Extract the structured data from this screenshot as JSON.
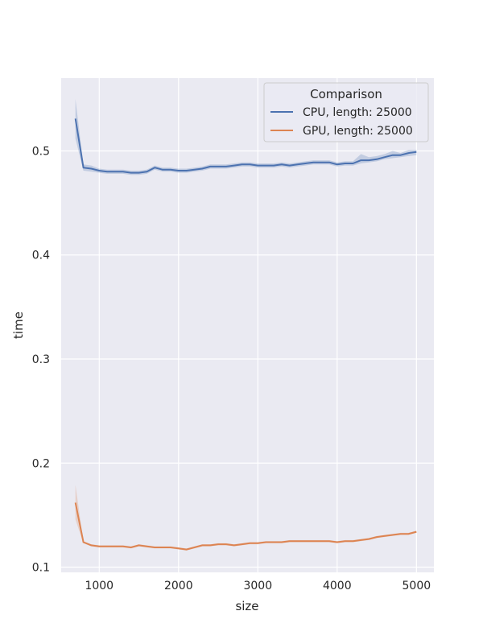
{
  "chart_data": {
    "type": "line",
    "title": "",
    "xlabel": "size",
    "ylabel": "time",
    "xlim": [
      520,
      5220
    ],
    "ylim": [
      0.095,
      0.57
    ],
    "xticks": [
      1000,
      2000,
      3000,
      4000,
      5000
    ],
    "yticks": [
      0.1,
      0.2,
      0.3,
      0.4,
      0.5
    ],
    "xtick_labels": [
      "1000",
      "2000",
      "3000",
      "4000",
      "5000"
    ],
    "ytick_labels": [
      "0.1",
      "0.2",
      "0.3",
      "0.4",
      "0.5"
    ],
    "grid": true,
    "legend": {
      "title": "Comparison",
      "placement": "top-right"
    },
    "series": [
      {
        "name": "CPU, length: 25000",
        "color": "#4c72b0",
        "x": [
          700,
          800,
          900,
          1000,
          1100,
          1200,
          1300,
          1400,
          1500,
          1600,
          1700,
          1800,
          1900,
          2000,
          2100,
          2200,
          2300,
          2400,
          2500,
          2600,
          2700,
          2800,
          2900,
          3000,
          3100,
          3200,
          3300,
          3400,
          3500,
          3600,
          3700,
          3800,
          3900,
          4000,
          4100,
          4200,
          4300,
          4400,
          4500,
          4600,
          4700,
          4800,
          4900,
          5000
        ],
        "y": [
          0.531,
          0.484,
          0.483,
          0.481,
          0.48,
          0.48,
          0.48,
          0.479,
          0.479,
          0.48,
          0.484,
          0.482,
          0.482,
          0.481,
          0.481,
          0.482,
          0.483,
          0.485,
          0.485,
          0.485,
          0.486,
          0.487,
          0.487,
          0.486,
          0.486,
          0.486,
          0.487,
          0.486,
          0.487,
          0.488,
          0.489,
          0.489,
          0.489,
          0.487,
          0.488,
          0.488,
          0.491,
          0.491,
          0.492,
          0.494,
          0.496,
          0.496,
          0.498,
          0.499
        ],
        "ci_low": [
          0.512,
          0.481,
          0.48,
          0.479,
          0.478,
          0.478,
          0.478,
          0.477,
          0.477,
          0.478,
          0.482,
          0.48,
          0.48,
          0.479,
          0.479,
          0.48,
          0.481,
          0.483,
          0.483,
          0.483,
          0.484,
          0.485,
          0.485,
          0.484,
          0.484,
          0.484,
          0.485,
          0.484,
          0.485,
          0.486,
          0.487,
          0.487,
          0.487,
          0.485,
          0.486,
          0.486,
          0.488,
          0.489,
          0.49,
          0.492,
          0.493,
          0.494,
          0.495,
          0.496
        ],
        "ci_high": [
          0.55,
          0.487,
          0.486,
          0.483,
          0.482,
          0.482,
          0.482,
          0.481,
          0.481,
          0.482,
          0.486,
          0.484,
          0.484,
          0.483,
          0.483,
          0.484,
          0.485,
          0.487,
          0.487,
          0.487,
          0.488,
          0.489,
          0.489,
          0.488,
          0.488,
          0.488,
          0.489,
          0.488,
          0.489,
          0.49,
          0.491,
          0.491,
          0.491,
          0.489,
          0.49,
          0.49,
          0.497,
          0.494,
          0.495,
          0.497,
          0.5,
          0.498,
          0.501,
          0.501
        ]
      },
      {
        "name": "GPU, length: 25000",
        "color": "#dd8452",
        "x": [
          700,
          800,
          900,
          1000,
          1100,
          1200,
          1300,
          1400,
          1500,
          1600,
          1700,
          1800,
          1900,
          2000,
          2100,
          2200,
          2300,
          2400,
          2500,
          2600,
          2700,
          2800,
          2900,
          3000,
          3100,
          3200,
          3300,
          3400,
          3500,
          3600,
          3700,
          3800,
          3900,
          4000,
          4100,
          4200,
          4300,
          4400,
          4500,
          4600,
          4700,
          4800,
          4900,
          5000
        ],
        "y": [
          0.162,
          0.124,
          0.121,
          0.12,
          0.12,
          0.12,
          0.12,
          0.119,
          0.121,
          0.12,
          0.119,
          0.119,
          0.119,
          0.118,
          0.117,
          0.119,
          0.121,
          0.121,
          0.122,
          0.122,
          0.121,
          0.122,
          0.123,
          0.123,
          0.124,
          0.124,
          0.124,
          0.125,
          0.125,
          0.125,
          0.125,
          0.125,
          0.125,
          0.124,
          0.125,
          0.125,
          0.126,
          0.127,
          0.129,
          0.13,
          0.131,
          0.132,
          0.132,
          0.134
        ],
        "ci_low": [
          0.146,
          0.123,
          0.12,
          0.119,
          0.119,
          0.119,
          0.119,
          0.118,
          0.12,
          0.119,
          0.118,
          0.118,
          0.118,
          0.117,
          0.116,
          0.118,
          0.12,
          0.12,
          0.121,
          0.121,
          0.12,
          0.121,
          0.122,
          0.122,
          0.123,
          0.123,
          0.123,
          0.124,
          0.124,
          0.124,
          0.124,
          0.124,
          0.124,
          0.123,
          0.124,
          0.124,
          0.125,
          0.126,
          0.128,
          0.129,
          0.13,
          0.131,
          0.131,
          0.133
        ],
        "ci_high": [
          0.179,
          0.125,
          0.122,
          0.121,
          0.121,
          0.121,
          0.121,
          0.12,
          0.122,
          0.121,
          0.12,
          0.12,
          0.12,
          0.119,
          0.118,
          0.12,
          0.122,
          0.122,
          0.123,
          0.123,
          0.122,
          0.123,
          0.124,
          0.124,
          0.125,
          0.125,
          0.125,
          0.126,
          0.126,
          0.126,
          0.126,
          0.126,
          0.126,
          0.125,
          0.126,
          0.126,
          0.127,
          0.128,
          0.13,
          0.131,
          0.132,
          0.133,
          0.133,
          0.135
        ]
      }
    ]
  }
}
